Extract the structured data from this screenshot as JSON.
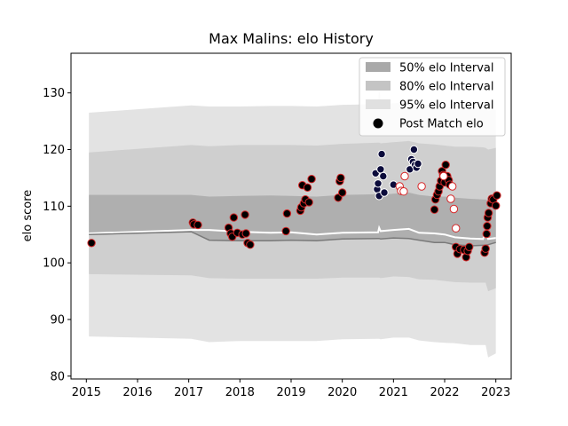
{
  "chart_data": {
    "type": "scatter",
    "title": "Max Malins: elo History",
    "xlabel": "",
    "ylabel": "elo score",
    "xlim": [
      2014.7,
      2023.3
    ],
    "ylim": [
      79.5,
      137
    ],
    "xticks": [
      2015,
      2016,
      2017,
      2018,
      2019,
      2020,
      2021,
      2022,
      2023
    ],
    "yticks": [
      80,
      90,
      100,
      110,
      120,
      130
    ],
    "grid": false,
    "legend_position": "top-right",
    "legend": [
      {
        "label": "50% elo Interval",
        "color": "#a9a9a9"
      },
      {
        "label": "80% elo Interval",
        "color": "#c4c4c4"
      },
      {
        "label": "95% elo Interval",
        "color": "#e0e0e0"
      },
      {
        "label": "Post Match elo",
        "color": "#000000"
      }
    ],
    "bands": {
      "x": [
        2015.05,
        2017.05,
        2017.4,
        2018.0,
        2018.6,
        2019.0,
        2019.5,
        2020.0,
        2020.7,
        2020.72,
        2020.75,
        2021.0,
        2021.3,
        2021.5,
        2021.8,
        2022.0,
        2022.2,
        2022.5,
        2022.75,
        2022.8,
        2022.85,
        2023.0
      ],
      "median": [
        105.2,
        105.8,
        105.8,
        105.5,
        105.3,
        105.4,
        105.0,
        105.3,
        105.4,
        106.2,
        105.6,
        105.8,
        106.0,
        105.3,
        105.2,
        105.0,
        104.5,
        104.3,
        104.2,
        105.5,
        104.2,
        104.4
      ],
      "low50": [
        105.0,
        105.5,
        104.0,
        103.9,
        103.9,
        104.0,
        103.9,
        104.2,
        104.3,
        104.3,
        104.2,
        104.4,
        104.3,
        104.0,
        103.6,
        103.6,
        103.2,
        103.0,
        103.1,
        103.1,
        103.2,
        103.6
      ],
      "high50": [
        112.0,
        112.0,
        111.7,
        111.8,
        111.9,
        111.8,
        111.7,
        112.0,
        112.1,
        112.1,
        112.0,
        112.2,
        112.4,
        112.0,
        111.7,
        111.7,
        111.5,
        111.3,
        111.2,
        111.2,
        111.0,
        111.2
      ],
      "low80": [
        98.0,
        97.8,
        97.3,
        97.2,
        97.2,
        97.2,
        97.2,
        97.4,
        97.4,
        97.4,
        97.3,
        97.6,
        97.5,
        97.1,
        97.0,
        96.8,
        96.6,
        96.5,
        96.5,
        96.5,
        95.0,
        95.5
      ],
      "high80": [
        119.5,
        120.8,
        120.6,
        120.8,
        120.8,
        120.8,
        120.7,
        121.0,
        121.2,
        121.2,
        121.1,
        121.3,
        121.5,
        121.1,
        120.9,
        120.7,
        120.5,
        120.5,
        120.4,
        120.3,
        120.0,
        120.3
      ],
      "low95": [
        87.0,
        86.6,
        86.0,
        86.2,
        86.2,
        86.2,
        86.2,
        86.5,
        86.6,
        86.6,
        86.5,
        86.8,
        86.8,
        86.3,
        86.0,
        85.9,
        85.8,
        85.5,
        85.5,
        85.5,
        83.3,
        84.0
      ],
      "high95": [
        126.5,
        127.8,
        127.6,
        127.6,
        127.7,
        127.7,
        127.6,
        127.9,
        128.0,
        131.5,
        128.0,
        128.2,
        128.4,
        128.0,
        127.8,
        127.6,
        127.4,
        127.2,
        127.2,
        127.2,
        126.9,
        127.1
      ]
    },
    "series": [
      {
        "style": "filled_red_edge",
        "points": [
          [
            2015.1,
            103.5
          ],
          [
            2017.08,
            107.1
          ],
          [
            2017.1,
            106.8
          ],
          [
            2017.18,
            106.7
          ],
          [
            2017.78,
            106.2
          ],
          [
            2017.82,
            105.2
          ],
          [
            2017.85,
            104.6
          ],
          [
            2017.88,
            108.0
          ],
          [
            2017.95,
            105.3
          ],
          [
            2018.05,
            105.0
          ],
          [
            2018.1,
            108.5
          ],
          [
            2018.12,
            105.2
          ],
          [
            2018.15,
            103.5
          ],
          [
            2018.2,
            103.2
          ],
          [
            2018.9,
            105.6
          ],
          [
            2018.92,
            108.7
          ],
          [
            2019.18,
            109.2
          ],
          [
            2019.2,
            109.8
          ],
          [
            2019.22,
            113.7
          ],
          [
            2019.25,
            110.5
          ],
          [
            2019.28,
            111.2
          ],
          [
            2019.32,
            113.3
          ],
          [
            2019.35,
            110.7
          ],
          [
            2019.4,
            114.8
          ],
          [
            2019.92,
            111.5
          ],
          [
            2019.95,
            114.4
          ],
          [
            2019.97,
            115.0
          ],
          [
            2020.0,
            112.4
          ],
          [
            2021.8,
            109.4
          ],
          [
            2021.82,
            111.2
          ],
          [
            2021.85,
            112.0
          ],
          [
            2021.88,
            112.6
          ],
          [
            2021.9,
            113.5
          ],
          [
            2021.93,
            114.5
          ],
          [
            2021.95,
            116.2
          ],
          [
            2021.97,
            115.5
          ],
          [
            2022.0,
            114.2
          ],
          [
            2022.02,
            117.3
          ],
          [
            2022.05,
            115.3
          ],
          [
            2022.08,
            114.6
          ],
          [
            2022.1,
            113.8
          ],
          [
            2022.22,
            102.8
          ],
          [
            2022.25,
            101.6
          ],
          [
            2022.3,
            102.4
          ],
          [
            2022.38,
            102.3
          ],
          [
            2022.42,
            101.0
          ],
          [
            2022.45,
            102.1
          ],
          [
            2022.48,
            102.8
          ],
          [
            2022.78,
            101.8
          ],
          [
            2022.8,
            102.5
          ],
          [
            2022.82,
            105.1
          ],
          [
            2022.83,
            106.5
          ],
          [
            2022.84,
            108.0
          ],
          [
            2022.86,
            108.8
          ],
          [
            2022.9,
            110.5
          ],
          [
            2022.92,
            111.3
          ],
          [
            2022.95,
            111.2
          ],
          [
            2023.0,
            110.1
          ],
          [
            2023.02,
            111.9
          ]
        ]
      },
      {
        "style": "navy",
        "points": [
          [
            2020.65,
            115.8
          ],
          [
            2020.68,
            113.0
          ],
          [
            2020.7,
            114.0
          ],
          [
            2020.72,
            111.8
          ],
          [
            2020.75,
            116.5
          ],
          [
            2020.77,
            119.2
          ],
          [
            2020.8,
            115.3
          ],
          [
            2020.82,
            112.4
          ],
          [
            2021.0,
            113.8
          ],
          [
            2021.32,
            116.5
          ],
          [
            2021.35,
            118.3
          ],
          [
            2021.38,
            117.8
          ],
          [
            2021.4,
            120.0
          ],
          [
            2021.42,
            117.3
          ],
          [
            2021.45,
            116.8
          ],
          [
            2021.48,
            117.5
          ]
        ]
      },
      {
        "style": "hollow_red",
        "points": [
          [
            2021.12,
            113.5
          ],
          [
            2021.15,
            112.7
          ],
          [
            2021.2,
            112.6
          ],
          [
            2021.22,
            115.3
          ],
          [
            2021.55,
            113.5
          ],
          [
            2021.98,
            115.3
          ],
          [
            2022.12,
            111.3
          ],
          [
            2022.15,
            113.5
          ],
          [
            2022.18,
            109.5
          ],
          [
            2022.22,
            106.1
          ]
        ]
      }
    ]
  }
}
